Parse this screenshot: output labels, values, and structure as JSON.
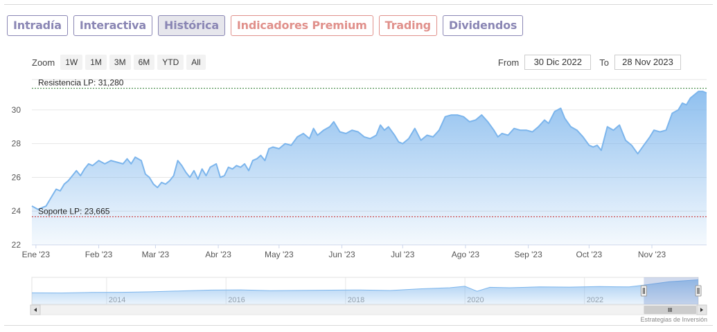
{
  "tabs": [
    {
      "label": "Intradía",
      "color": "#8a86b4"
    },
    {
      "label": "Interactiva",
      "color": "#8a86b4"
    },
    {
      "label": "Histórica",
      "color": "#8a86b4",
      "active": true
    },
    {
      "label": "Indicadores Premium",
      "color": "#e0908b"
    },
    {
      "label": "Trading",
      "color": "#e0908b"
    },
    {
      "label": "Dividendos",
      "color": "#8a86b4"
    }
  ],
  "zoom": {
    "label": "Zoom",
    "buttons": [
      "1W",
      "1M",
      "3M",
      "6M",
      "YTD",
      "All"
    ]
  },
  "range": {
    "from_label": "From",
    "from_value": "30 Dic 2022",
    "to_label": "To",
    "to_value": "28 Nov 2023"
  },
  "credit": "Estrategias de Inversión",
  "chart_data": {
    "type": "area",
    "title": "",
    "xlabel": "",
    "ylabel": "",
    "ylim": [
      22,
      31.8
    ],
    "yticks": [
      22,
      24,
      26,
      28,
      30
    ],
    "x_range": [
      "2022-12-30",
      "2023-11-28"
    ],
    "xticks": [
      {
        "label": "Ene '23",
        "date": "2023-01-01"
      },
      {
        "label": "Feb '23",
        "date": "2023-02-01"
      },
      {
        "label": "Mar '23",
        "date": "2023-03-01"
      },
      {
        "label": "Abr '23",
        "date": "2023-04-01"
      },
      {
        "label": "May '23",
        "date": "2023-05-01"
      },
      {
        "label": "Jun '23",
        "date": "2023-06-01"
      },
      {
        "label": "Jul '23",
        "date": "2023-07-01"
      },
      {
        "label": "Ago '23",
        "date": "2023-08-01"
      },
      {
        "label": "Sep '23",
        "date": "2023-09-01"
      },
      {
        "label": "Oct '23",
        "date": "2023-10-01"
      },
      {
        "label": "Nov '23",
        "date": "2023-11-01"
      }
    ],
    "grid": true,
    "series_color": "#7cb5ec",
    "series": [
      {
        "points": [
          [
            "2022-12-30",
            24.3
          ],
          [
            "2023-01-02",
            24.1
          ],
          [
            "2023-01-04",
            24.2
          ],
          [
            "2023-01-06",
            24.3
          ],
          [
            "2023-01-09",
            24.9
          ],
          [
            "2023-01-11",
            25.3
          ],
          [
            "2023-01-13",
            25.2
          ],
          [
            "2023-01-15",
            25.6
          ],
          [
            "2023-01-17",
            25.8
          ],
          [
            "2023-01-19",
            26.1
          ],
          [
            "2023-01-21",
            26.4
          ],
          [
            "2023-01-23",
            26.1
          ],
          [
            "2023-01-25",
            26.5
          ],
          [
            "2023-01-27",
            26.8
          ],
          [
            "2023-01-29",
            26.7
          ],
          [
            "2023-02-01",
            27.0
          ],
          [
            "2023-02-04",
            26.8
          ],
          [
            "2023-02-07",
            27.0
          ],
          [
            "2023-02-10",
            26.9
          ],
          [
            "2023-02-13",
            26.8
          ],
          [
            "2023-02-15",
            27.1
          ],
          [
            "2023-02-17",
            26.8
          ],
          [
            "2023-02-19",
            27.2
          ],
          [
            "2023-02-22",
            27.0
          ],
          [
            "2023-02-24",
            26.2
          ],
          [
            "2023-02-26",
            26.0
          ],
          [
            "2023-02-28",
            25.6
          ],
          [
            "2023-03-02",
            25.4
          ],
          [
            "2023-03-04",
            25.7
          ],
          [
            "2023-03-06",
            25.6
          ],
          [
            "2023-03-08",
            25.8
          ],
          [
            "2023-03-10",
            26.1
          ],
          [
            "2023-03-12",
            27.0
          ],
          [
            "2023-03-14",
            26.7
          ],
          [
            "2023-03-16",
            26.3
          ],
          [
            "2023-03-18",
            26.0
          ],
          [
            "2023-03-20",
            26.4
          ],
          [
            "2023-03-22",
            25.9
          ],
          [
            "2023-03-24",
            26.5
          ],
          [
            "2023-03-26",
            26.1
          ],
          [
            "2023-03-28",
            26.6
          ],
          [
            "2023-03-31",
            26.8
          ],
          [
            "2023-04-02",
            26.0
          ],
          [
            "2023-04-04",
            26.1
          ],
          [
            "2023-04-06",
            26.6
          ],
          [
            "2023-04-08",
            26.5
          ],
          [
            "2023-04-10",
            26.7
          ],
          [
            "2023-04-12",
            26.6
          ],
          [
            "2023-04-14",
            26.8
          ],
          [
            "2023-04-16",
            26.4
          ],
          [
            "2023-04-18",
            27.0
          ],
          [
            "2023-04-20",
            27.1
          ],
          [
            "2023-04-22",
            27.3
          ],
          [
            "2023-04-24",
            27.0
          ],
          [
            "2023-04-26",
            27.7
          ],
          [
            "2023-04-28",
            27.8
          ],
          [
            "2023-05-01",
            27.7
          ],
          [
            "2023-05-04",
            28.0
          ],
          [
            "2023-05-07",
            27.9
          ],
          [
            "2023-05-10",
            28.4
          ],
          [
            "2023-05-13",
            28.6
          ],
          [
            "2023-05-16",
            28.3
          ],
          [
            "2023-05-18",
            28.9
          ],
          [
            "2023-05-20",
            28.5
          ],
          [
            "2023-05-23",
            28.8
          ],
          [
            "2023-05-26",
            29.0
          ],
          [
            "2023-05-28",
            29.3
          ],
          [
            "2023-05-31",
            28.7
          ],
          [
            "2023-06-03",
            28.6
          ],
          [
            "2023-06-06",
            28.8
          ],
          [
            "2023-06-09",
            28.7
          ],
          [
            "2023-06-12",
            28.4
          ],
          [
            "2023-06-15",
            28.3
          ],
          [
            "2023-06-18",
            28.5
          ],
          [
            "2023-06-20",
            29.1
          ],
          [
            "2023-06-22",
            28.8
          ],
          [
            "2023-06-24",
            29.0
          ],
          [
            "2023-06-27",
            28.5
          ],
          [
            "2023-06-29",
            28.1
          ],
          [
            "2023-07-01",
            28.0
          ],
          [
            "2023-07-04",
            28.3
          ],
          [
            "2023-07-07",
            28.9
          ],
          [
            "2023-07-10",
            28.2
          ],
          [
            "2023-07-13",
            28.5
          ],
          [
            "2023-07-16",
            28.4
          ],
          [
            "2023-07-19",
            28.8
          ],
          [
            "2023-07-22",
            29.6
          ],
          [
            "2023-07-25",
            29.7
          ],
          [
            "2023-07-28",
            29.7
          ],
          [
            "2023-07-31",
            29.6
          ],
          [
            "2023-08-03",
            29.3
          ],
          [
            "2023-08-06",
            29.4
          ],
          [
            "2023-08-09",
            29.7
          ],
          [
            "2023-08-12",
            29.3
          ],
          [
            "2023-08-15",
            28.8
          ],
          [
            "2023-08-17",
            28.4
          ],
          [
            "2023-08-19",
            28.6
          ],
          [
            "2023-08-22",
            28.5
          ],
          [
            "2023-08-25",
            28.9
          ],
          [
            "2023-08-28",
            28.8
          ],
          [
            "2023-08-31",
            28.8
          ],
          [
            "2023-09-03",
            28.7
          ],
          [
            "2023-09-06",
            29.0
          ],
          [
            "2023-09-09",
            29.4
          ],
          [
            "2023-09-11",
            29.2
          ],
          [
            "2023-09-14",
            29.9
          ],
          [
            "2023-09-17",
            30.1
          ],
          [
            "2023-09-19",
            29.5
          ],
          [
            "2023-09-22",
            29.0
          ],
          [
            "2023-09-25",
            28.8
          ],
          [
            "2023-09-28",
            28.4
          ],
          [
            "2023-10-01",
            27.9
          ],
          [
            "2023-10-03",
            27.8
          ],
          [
            "2023-10-05",
            27.9
          ],
          [
            "2023-10-07",
            27.6
          ],
          [
            "2023-10-10",
            29.0
          ],
          [
            "2023-10-13",
            28.8
          ],
          [
            "2023-10-16",
            29.1
          ],
          [
            "2023-10-19",
            28.2
          ],
          [
            "2023-10-22",
            27.9
          ],
          [
            "2023-10-25",
            27.4
          ],
          [
            "2023-10-28",
            27.9
          ],
          [
            "2023-10-31",
            28.4
          ],
          [
            "2023-11-02",
            28.8
          ],
          [
            "2023-11-05",
            28.7
          ],
          [
            "2023-11-08",
            28.8
          ],
          [
            "2023-11-11",
            29.8
          ],
          [
            "2023-11-14",
            30.0
          ],
          [
            "2023-11-16",
            30.4
          ],
          [
            "2023-11-18",
            30.3
          ],
          [
            "2023-11-20",
            30.7
          ],
          [
            "2023-11-22",
            30.9
          ],
          [
            "2023-11-24",
            31.1
          ],
          [
            "2023-11-26",
            31.1
          ],
          [
            "2023-11-28",
            31.0
          ]
        ]
      }
    ],
    "reference_lines": [
      {
        "label": "Resistencia LP: 31,280",
        "value": 31.28,
        "color": "#2e7d32"
      },
      {
        "label": "Soporte LP: 23,665",
        "value": 23.665,
        "color": "#c62828"
      }
    ],
    "navigator": {
      "xticks": [
        "2014",
        "2016",
        "2018",
        "2020",
        "2022"
      ],
      "tick_dates": [
        "2014-01-01",
        "2016-01-01",
        "2018-01-01",
        "2020-01-01",
        "2022-01-01"
      ],
      "x_range": [
        "2012-10-01",
        "2023-11-28"
      ],
      "selected_range": [
        "2022-12-30",
        "2023-11-28"
      ],
      "series": [
        [
          "2012-10-01",
          14.5
        ],
        [
          "2013-04-01",
          14.3
        ],
        [
          "2013-10-01",
          15.0
        ],
        [
          "2014-04-01",
          15.2
        ],
        [
          "2014-10-01",
          15.8
        ],
        [
          "2015-04-01",
          17.0
        ],
        [
          "2015-10-01",
          18.0
        ],
        [
          "2016-04-01",
          18.3
        ],
        [
          "2016-10-01",
          17.2
        ],
        [
          "2017-04-01",
          17.6
        ],
        [
          "2017-10-01",
          17.9
        ],
        [
          "2018-04-01",
          18.2
        ],
        [
          "2018-10-01",
          17.5
        ],
        [
          "2019-04-01",
          19.6
        ],
        [
          "2019-10-01",
          21.0
        ],
        [
          "2020-01-01",
          22.8
        ],
        [
          "2020-03-15",
          16.5
        ],
        [
          "2020-06-01",
          21.5
        ],
        [
          "2020-10-01",
          21.0
        ],
        [
          "2021-04-01",
          22.0
        ],
        [
          "2021-10-01",
          21.8
        ],
        [
          "2022-04-01",
          22.5
        ],
        [
          "2022-10-01",
          22.0
        ],
        [
          "2022-12-30",
          24.2
        ],
        [
          "2023-06-01",
          28.5
        ],
        [
          "2023-11-28",
          31.0
        ]
      ]
    }
  }
}
